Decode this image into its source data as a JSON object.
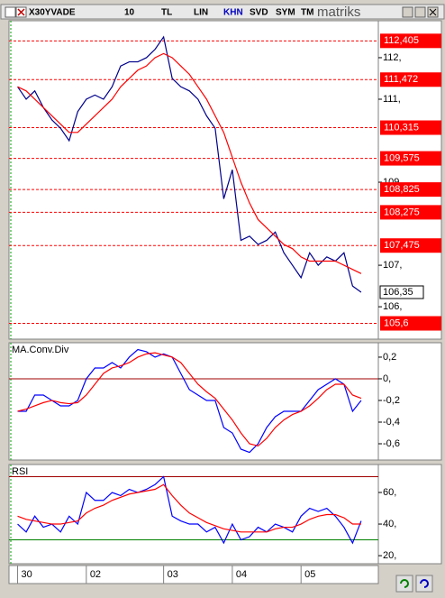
{
  "toolbar": {
    "items": [
      "X30YVADE",
      "10",
      "TL",
      "LIN",
      "KHN",
      "SVD",
      "SYM",
      "TM"
    ],
    "brand": "matriks"
  },
  "chart_data": [
    {
      "type": "line",
      "x": [
        0,
        1,
        2,
        3,
        4,
        5,
        6,
        7,
        8,
        9,
        10,
        11,
        12,
        13,
        14,
        15,
        16,
        17,
        18,
        19,
        20,
        21,
        22,
        23,
        24,
        25,
        26,
        27,
        28,
        29,
        30,
        31,
        32,
        33,
        34,
        35,
        36,
        37,
        38,
        39,
        40
      ],
      "xlim": [
        -1,
        42
      ],
      "ylim": [
        105.22,
        112.89
      ],
      "yticks": [
        {
          "value": 112,
          "label": "112,"
        },
        {
          "value": 111,
          "label": "111,"
        },
        {
          "value": 109,
          "label": "109,"
        },
        {
          "value": 107,
          "label": "107,"
        },
        {
          "value": 106,
          "label": "106,"
        }
      ],
      "series": [
        {
          "color": "#00008b",
          "values": [
            111.3,
            111.0,
            111.2,
            110.8,
            110.5,
            110.3,
            110.0,
            110.7,
            111.0,
            111.1,
            111.0,
            111.3,
            111.8,
            111.9,
            111.9,
            112.0,
            112.2,
            112.5,
            111.5,
            111.3,
            111.2,
            111.0,
            110.6,
            110.3,
            108.6,
            109.3,
            107.6,
            107.7,
            107.5,
            107.6,
            107.8,
            107.3,
            107.0,
            106.7,
            107.3,
            107.0,
            107.2,
            107.1,
            107.3,
            106.5,
            106.35
          ]
        },
        {
          "color": "#ff0000",
          "values": [
            111.3,
            111.2,
            111.0,
            110.8,
            110.6,
            110.4,
            110.2,
            110.2,
            110.4,
            110.6,
            110.8,
            111.0,
            111.3,
            111.5,
            111.7,
            111.8,
            112.0,
            112.1,
            112.0,
            111.8,
            111.6,
            111.3,
            111.0,
            110.6,
            110.2,
            109.6,
            109.0,
            108.5,
            108.1,
            107.9,
            107.7,
            107.5,
            107.4,
            107.2,
            107.1,
            107.1,
            107.1,
            107.1,
            107.0,
            106.9,
            106.8
          ]
        }
      ],
      "levels": [
        {
          "value": 112.405,
          "label": "112,405"
        },
        {
          "value": 111.472,
          "label": "111,472"
        },
        {
          "value": 110.315,
          "label": "110,315"
        },
        {
          "value": 109.575,
          "label": "109,575"
        },
        {
          "value": 108.825,
          "label": "108,825"
        },
        {
          "value": 108.275,
          "label": "108,275"
        },
        {
          "value": 107.475,
          "label": "107,475"
        },
        {
          "value": 105.6,
          "label": "105,6"
        }
      ],
      "level_color": "#ff0000",
      "last_value": {
        "value": 106.35,
        "label": "106,35"
      }
    },
    {
      "type": "line",
      "title": "MA.Conv.Div",
      "x": [
        0,
        1,
        2,
        3,
        4,
        5,
        6,
        7,
        8,
        9,
        10,
        11,
        12,
        13,
        14,
        15,
        16,
        17,
        18,
        19,
        20,
        21,
        22,
        23,
        24,
        25,
        26,
        27,
        28,
        29,
        30,
        31,
        32,
        33,
        34,
        35,
        36,
        37,
        38,
        39,
        40
      ],
      "xlim": [
        -1,
        42
      ],
      "ylim": [
        -0.75,
        0.333
      ],
      "yticks": [
        {
          "value": 0.2,
          "label": "0,2"
        },
        {
          "value": 0,
          "label": "0,"
        },
        {
          "value": -0.2,
          "label": "-0,2"
        },
        {
          "value": -0.4,
          "label": "-0,4"
        },
        {
          "value": -0.6,
          "label": "-0,6"
        }
      ],
      "reference_lines": [
        {
          "value": 0,
          "color": "#a00000"
        }
      ],
      "series": [
        {
          "color": "#0000ff",
          "values": [
            -0.3,
            -0.3,
            -0.15,
            -0.15,
            -0.2,
            -0.25,
            -0.25,
            -0.2,
            0.0,
            0.1,
            0.1,
            0.15,
            0.1,
            0.2,
            0.27,
            0.25,
            0.2,
            0.23,
            0.2,
            0.05,
            -0.1,
            -0.15,
            -0.2,
            -0.2,
            -0.45,
            -0.5,
            -0.65,
            -0.68,
            -0.6,
            -0.45,
            -0.35,
            -0.3,
            -0.3,
            -0.3,
            -0.2,
            -0.1,
            -0.05,
            0,
            -0.05,
            -0.3,
            -0.2
          ]
        },
        {
          "color": "#ff0000",
          "values": [
            -0.3,
            -0.28,
            -0.25,
            -0.22,
            -0.2,
            -0.22,
            -0.23,
            -0.22,
            -0.15,
            -0.05,
            0.05,
            0.1,
            0.12,
            0.15,
            0.2,
            0.23,
            0.24,
            0.22,
            0.2,
            0.15,
            0.05,
            -0.05,
            -0.12,
            -0.18,
            -0.28,
            -0.38,
            -0.5,
            -0.6,
            -0.62,
            -0.55,
            -0.45,
            -0.38,
            -0.33,
            -0.3,
            -0.25,
            -0.18,
            -0.1,
            -0.05,
            -0.05,
            -0.15,
            -0.18
          ]
        }
      ]
    },
    {
      "type": "line",
      "title": "RSI",
      "x": [
        0,
        1,
        2,
        3,
        4,
        5,
        6,
        7,
        8,
        9,
        10,
        11,
        12,
        13,
        14,
        15,
        16,
        17,
        18,
        19,
        20,
        21,
        22,
        23,
        24,
        25,
        26,
        27,
        28,
        29,
        30,
        31,
        32,
        33,
        34,
        35,
        36,
        37,
        38,
        39,
        40
      ],
      "xlim": [
        -1,
        42
      ],
      "ylim": [
        14.9,
        77.7
      ],
      "yticks": [
        {
          "value": 60,
          "label": "60,"
        },
        {
          "value": 40,
          "label": "40,"
        },
        {
          "value": 20,
          "label": "20,"
        }
      ],
      "xticks": [
        {
          "value": 0,
          "label": "30"
        },
        {
          "value": 8,
          "label": "02"
        },
        {
          "value": 17,
          "label": "03"
        },
        {
          "value": 25,
          "label": "04"
        },
        {
          "value": 33,
          "label": "05"
        }
      ],
      "reference_lines": [
        {
          "value": 70,
          "color": "#a00000"
        },
        {
          "value": 30,
          "color": "#008000"
        }
      ],
      "series": [
        {
          "color": "#0000ff",
          "values": [
            40,
            35,
            45,
            38,
            40,
            35,
            45,
            40,
            60,
            55,
            55,
            60,
            58,
            62,
            60,
            62,
            65,
            70,
            45,
            42,
            40,
            40,
            35,
            38,
            28,
            40,
            30,
            32,
            38,
            35,
            40,
            38,
            35,
            45,
            50,
            48,
            50,
            45,
            38,
            28,
            42
          ]
        },
        {
          "color": "#ff0000",
          "values": [
            45,
            43,
            42,
            41,
            40,
            40,
            41,
            42,
            47,
            50,
            52,
            55,
            57,
            59,
            60,
            61,
            62,
            65,
            58,
            52,
            47,
            44,
            41,
            39,
            37,
            36,
            35,
            35,
            35,
            35,
            37,
            38,
            38,
            40,
            43,
            45,
            46,
            46,
            44,
            40,
            40
          ]
        }
      ]
    }
  ]
}
